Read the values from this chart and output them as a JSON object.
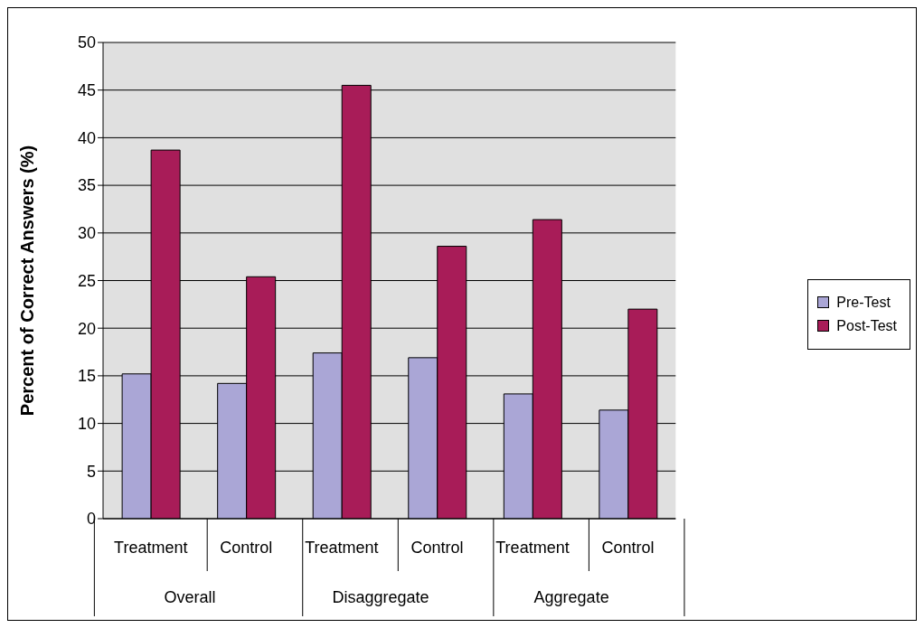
{
  "chart_data": {
    "type": "bar",
    "ylabel": "Percent of Correct Answers (%)",
    "categories": [
      "Treatment",
      "Control",
      "Treatment",
      "Control",
      "Treatment",
      "Control"
    ],
    "annotations": [
      "Overall",
      "Disaggregate",
      "Aggregate"
    ],
    "series": [
      {
        "name": "Pre-Test",
        "color": "#aaa6d6",
        "values": [
          15.2,
          14.2,
          17.4,
          16.9,
          13.1,
          11.4
        ]
      },
      {
        "name": "Post-Test",
        "color": "#a81c58",
        "values": [
          38.7,
          25.4,
          45.5,
          28.6,
          31.4,
          22.0
        ]
      }
    ],
    "ylim": [
      0,
      50
    ],
    "yticks": [
      0,
      5,
      10,
      15,
      20,
      25,
      30,
      35,
      40,
      45,
      50
    ],
    "grid": "y",
    "legend": "right"
  }
}
